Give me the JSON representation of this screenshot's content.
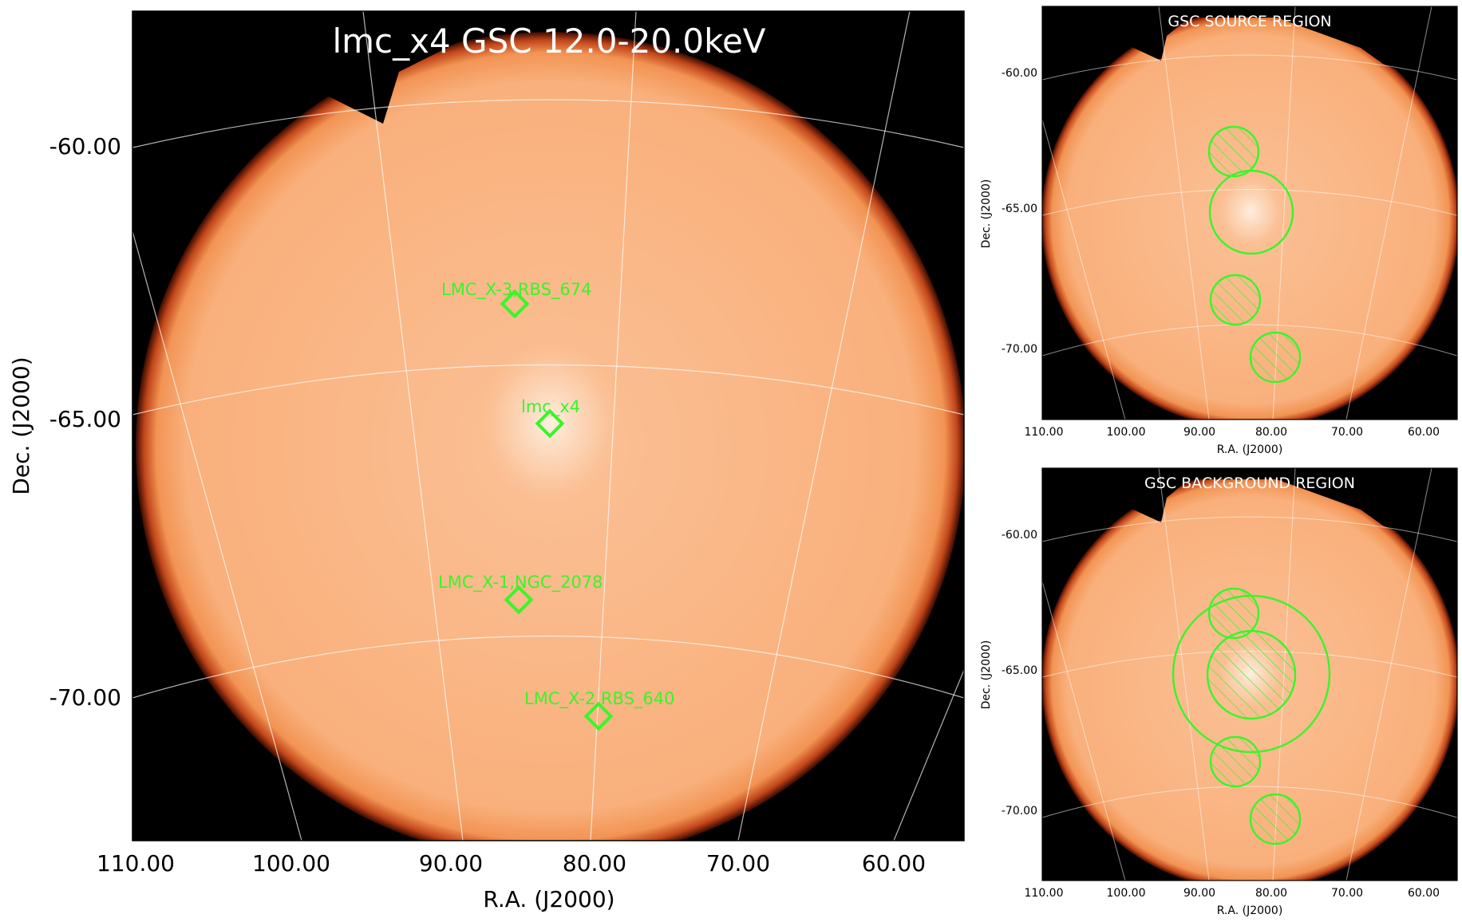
{
  "main": {
    "title": "lmc_x4 GSC 12.0-20.0keV",
    "xlabel": "R.A. (J2000)",
    "ylabel": "Dec. (J2000)",
    "xticks": [
      "110.00",
      "100.00",
      "90.00",
      "80.00",
      "70.00",
      "60.00"
    ],
    "yticks": [
      "-60.00",
      "-65.00",
      "-70.00"
    ],
    "sources": [
      {
        "label": "LMC_X-3,RBS_674"
      },
      {
        "label": "lmc_x4"
      },
      {
        "label": "LMC_X-1,NGC_2078"
      },
      {
        "label": "LMC_X-2,RBS_640"
      }
    ]
  },
  "source_panel": {
    "title": "GSC SOURCE REGION",
    "xlabel": "R.A. (J2000)",
    "ylabel": "Dec. (J2000)",
    "xticks": [
      "110.00",
      "100.00",
      "90.00",
      "80.00",
      "70.00",
      "60.00"
    ],
    "yticks": [
      "-60.00",
      "-65.00",
      "-70.00"
    ]
  },
  "background_panel": {
    "title": "GSC BACKGROUND REGION",
    "xlabel": "R.A. (J2000)",
    "ylabel": "Dec. (J2000)",
    "xticks": [
      "110.00",
      "100.00",
      "90.00",
      "80.00",
      "70.00",
      "60.00"
    ],
    "yticks": [
      "-60.00",
      "-65.00",
      "-70.00"
    ]
  },
  "colors": {
    "marker": "#39f52a",
    "disk": "#fcb787",
    "sky": "#000000"
  }
}
